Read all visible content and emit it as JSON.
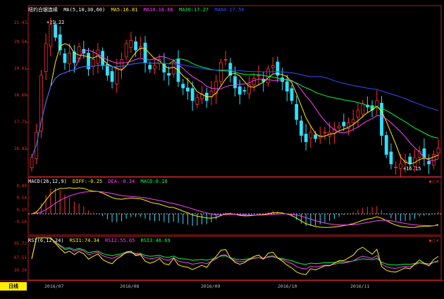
{
  "main_panel": {
    "title": "纽约白银连续",
    "ma_param": "MA(5,10,30,60)",
    "ma5": "MA5:16.81",
    "ma10": "MA10:16.66",
    "ma30": "MA30:17.27",
    "ma60": "MA60:17.56",
    "high_annotation": "+21.22",
    "low_annotation": "+16.15",
    "y_ticks": [
      "21.47",
      "20.54",
      "19.61",
      "18.68",
      "17.75",
      "16.82"
    ]
  },
  "macd_panel": {
    "title": "MACD(26,12,9)",
    "diff": "DIFF:-0.25",
    "dea": "DEA:-0.34",
    "macd": "MACD:0.18",
    "y_ticks": [
      "0.89",
      "0.54",
      "0.19",
      "-0.16"
    ]
  },
  "rsi_panel": {
    "title": "RSI(6,12,24)",
    "rsi1": "RSI1:74.34",
    "rsi2": "RSI2:55.05",
    "rsi3": "RSI3:46.69",
    "y_ticks": [
      "95.73",
      "67.51",
      "39.24"
    ]
  },
  "x_axis": {
    "dates": [
      "2016/07",
      "2016/08",
      "2016/09",
      "2016/10",
      "2016/11"
    ]
  },
  "period_tab": "日线",
  "colors": {
    "up": "#ff3030",
    "down": "#30e0ff",
    "ma5": "#ffffff",
    "ma10": "#ffee00",
    "ma30": "#ff40ff",
    "ma60": "#00ff40",
    "ma_long": "#3050ff",
    "border": "#b02020"
  },
  "chart_data": {
    "type": "candlestick",
    "title": "纽约白银连续",
    "ylim": [
      16.2,
      21.6
    ],
    "close_series_approx": [
      16.8,
      17.6,
      19.4,
      20.4,
      21.0,
      20.6,
      20.2,
      19.8,
      20.1,
      19.8,
      20.3,
      20.1,
      19.6,
      19.9,
      20.2,
      19.7,
      19.4,
      19.2,
      19.6,
      19.9,
      20.4,
      20.5,
      20.2,
      20.3,
      19.8,
      19.6,
      19.7,
      19.9,
      19.5,
      19.4,
      19.8,
      19.2,
      19.0,
      18.9,
      18.6,
      18.7,
      18.8,
      18.6,
      18.9,
      19.2,
      19.8,
      19.9,
      19.4,
      19.0,
      18.8,
      18.9,
      19.1,
      19.3,
      19.4,
      19.2,
      19.6,
      19.7,
      19.4,
      19.2,
      18.9,
      18.6,
      18.0,
      17.5,
      17.3,
      17.6,
      17.4,
      17.5,
      17.6,
      17.6,
      17.7,
      17.8,
      17.8,
      17.9,
      18.0,
      18.3,
      18.5,
      18.4,
      18.3,
      18.6,
      17.5,
      16.9,
      16.6,
      16.5,
      16.6,
      16.7,
      16.6,
      16.8,
      17.0,
      16.8,
      16.6,
      16.9,
      17.1
    ],
    "high": 21.22,
    "low": 16.15,
    "ma5": 16.81,
    "ma10": 16.66,
    "ma30": 17.27,
    "ma60": 17.56,
    "macd": {
      "diff": -0.25,
      "dea": -0.34,
      "macd": 0.18
    },
    "rsi": {
      "rsi1": 74.34,
      "rsi2": 55.05,
      "rsi3": 46.69
    }
  }
}
